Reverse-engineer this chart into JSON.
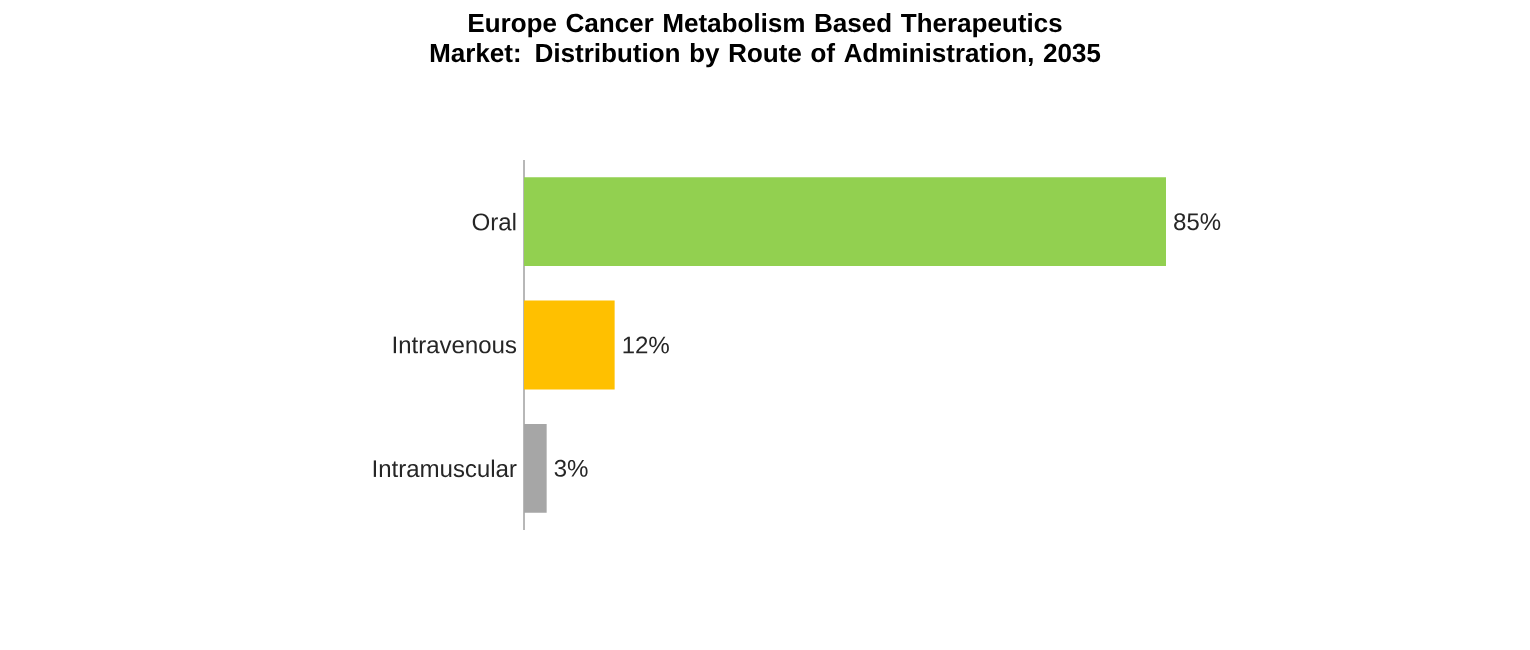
{
  "chart_data": {
    "type": "bar",
    "orientation": "horizontal",
    "title": "Europe Cancer Metabolism Based Therapeutics Market: Distribution by Route of Administration, 2035",
    "categories": [
      "Oral",
      "Intravenous",
      "Intramuscular"
    ],
    "values": [
      85,
      12,
      3
    ],
    "colors": [
      "#92d050",
      "#ffc000",
      "#a6a6a6"
    ],
    "value_labels": [
      "85%",
      "12%",
      "3%"
    ],
    "tick_labels": "y"
  }
}
